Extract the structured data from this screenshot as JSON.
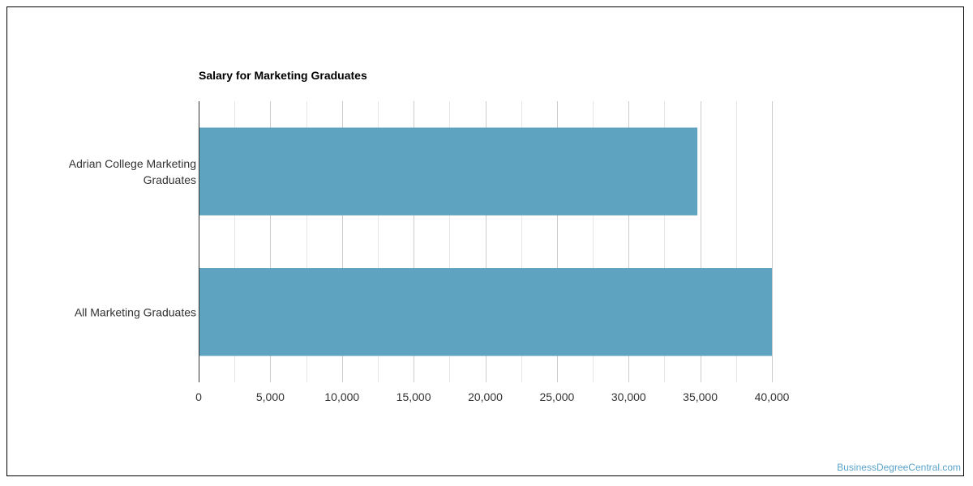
{
  "chart_data": {
    "type": "bar",
    "orientation": "horizontal",
    "title": "Salary for Marketing Graduates",
    "categories": [
      [
        "Adrian College Marketing",
        "Graduates"
      ],
      [
        "All Marketing Graduates"
      ]
    ],
    "values": [
      34800,
      40000
    ],
    "xlim": [
      0,
      40000
    ],
    "major_ticks": [
      0,
      5000,
      10000,
      15000,
      20000,
      25000,
      30000,
      35000,
      40000
    ],
    "tick_labels": [
      "0",
      "5,000",
      "10,000",
      "15,000",
      "20,000",
      "25,000",
      "30,000",
      "35,000",
      "40,000"
    ],
    "grid": true,
    "legend": "none",
    "colors": {
      "bar": "#5ea3c0",
      "grid": "#e6e6e6",
      "axis": "#333333"
    }
  },
  "watermark": "BusinessDegreeCentral.com"
}
